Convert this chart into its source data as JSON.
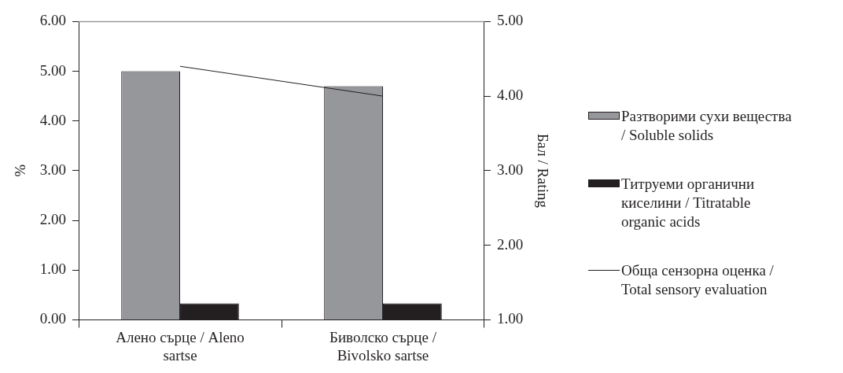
{
  "chart_data": {
    "type": "bar",
    "categories": [
      "Алено сърце / Aleno sartse",
      "Биволско сърце / Bivolsko sartse"
    ],
    "ylabel": "%",
    "y2label": "Бал / Rating",
    "series": [
      {
        "name": "Разтворими сухи вещества / Soluble solids",
        "color": "#96979b",
        "values": [
          5.0,
          4.7
        ]
      },
      {
        "name": "Титруеми органични киселини / Titratable organic acids",
        "color": "#231f20",
        "values": [
          0.33,
          0.33
        ]
      },
      {
        "name": "Обща сензорна оценка / Total sensory evaluation",
        "type": "line",
        "axis": "y2",
        "color": "#231f20",
        "values": [
          4.4,
          4.0
        ]
      }
    ],
    "ylim": [
      0,
      6
    ],
    "yticks": [
      {
        "value": 0,
        "label": "0.00"
      },
      {
        "value": 1,
        "label": "1.00"
      },
      {
        "value": 2,
        "label": "2.00"
      },
      {
        "value": 3,
        "label": "3.00"
      },
      {
        "value": 4,
        "label": "4.00"
      },
      {
        "value": 5,
        "label": "5.00"
      },
      {
        "value": 6,
        "label": "6.00"
      }
    ],
    "y2lim": [
      1,
      5
    ],
    "y2ticks": [
      {
        "value": 1,
        "label": "1.00"
      },
      {
        "value": 2,
        "label": "2.00"
      },
      {
        "value": 3,
        "label": "3.00"
      },
      {
        "value": 4,
        "label": "4.00"
      },
      {
        "value": 5,
        "label": "5.00"
      }
    ],
    "grid": false,
    "legend": "right",
    "marker": "none",
    "line_style": "solid"
  }
}
